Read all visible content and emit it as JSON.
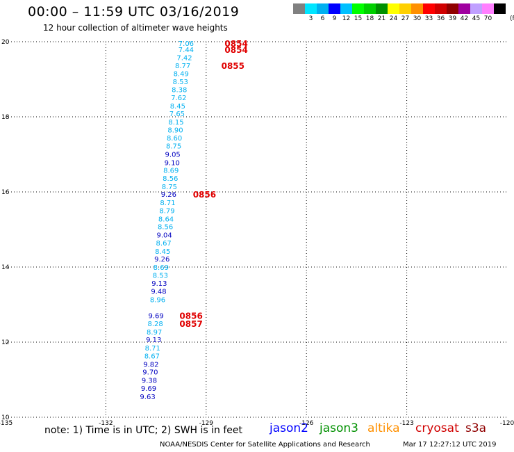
{
  "header": {
    "title": "00:00 – 11:59 UTC 03/16/2019",
    "subtitle": "12 hour collection of altimeter wave heights"
  },
  "color_legend": {
    "unit": "(ft)",
    "entries": [
      {
        "label": "",
        "color": "#808080"
      },
      {
        "label": "3",
        "color": "#00e5ff"
      },
      {
        "label": "6",
        "color": "#00b0f0"
      },
      {
        "label": "9",
        "color": "#0000ff"
      },
      {
        "label": "12",
        "color": "#00c0ff"
      },
      {
        "label": "15",
        "color": "#00ff00"
      },
      {
        "label": "18",
        "color": "#00d000"
      },
      {
        "label": "21",
        "color": "#009000"
      },
      {
        "label": "24",
        "color": "#ffff00"
      },
      {
        "label": "27",
        "color": "#ffd000"
      },
      {
        "label": "30",
        "color": "#ff9000"
      },
      {
        "label": "33",
        "color": "#ff0000"
      },
      {
        "label": "36",
        "color": "#d00000"
      },
      {
        "label": "39",
        "color": "#900000"
      },
      {
        "label": "42",
        "color": "#a000a0"
      },
      {
        "label": "45",
        "color": "#c0a0ff"
      },
      {
        "label": "70",
        "color": "#ff80ff"
      },
      {
        "label": "",
        "color": "#000000"
      }
    ]
  },
  "chart_data": {
    "type": "scatter",
    "xlim": [
      -135,
      -120
    ],
    "ylim": [
      10,
      20
    ],
    "x_ticks": [
      {
        "value": -135,
        "label": "-135"
      },
      {
        "value": -132,
        "label": "-132"
      },
      {
        "value": -129,
        "label": "-129"
      },
      {
        "value": -126,
        "label": "-126"
      },
      {
        "value": -123,
        "label": "-123"
      },
      {
        "value": -120,
        "label": "-120"
      }
    ],
    "y_ticks": [
      {
        "value": 10,
        "label": "10"
      },
      {
        "value": 12,
        "label": "12"
      },
      {
        "value": 14,
        "label": "14"
      },
      {
        "value": 16,
        "label": "16"
      },
      {
        "value": 18,
        "label": "18"
      },
      {
        "value": 20,
        "label": "20"
      }
    ],
    "grid": true,
    "points": [
      {
        "lon": -129.6,
        "lat": 19.96,
        "label": "7.06",
        "color": "#00b0f0"
      },
      {
        "lon": -129.6,
        "lat": 19.8,
        "label": "7.44",
        "color": "#00b0f0"
      },
      {
        "lon": -129.65,
        "lat": 19.58,
        "label": "7.42",
        "color": "#00b0f0"
      },
      {
        "lon": -129.7,
        "lat": 19.37,
        "label": "8.77",
        "color": "#00b0f0"
      },
      {
        "lon": -129.75,
        "lat": 19.16,
        "label": "8.49",
        "color": "#00b0f0"
      },
      {
        "lon": -129.77,
        "lat": 18.94,
        "label": "8.53",
        "color": "#00b0f0"
      },
      {
        "lon": -129.8,
        "lat": 18.73,
        "label": "8.38",
        "color": "#00b0f0"
      },
      {
        "lon": -129.82,
        "lat": 18.52,
        "label": "7.62",
        "color": "#00b0f0"
      },
      {
        "lon": -129.85,
        "lat": 18.3,
        "label": "8.45",
        "color": "#00b0f0"
      },
      {
        "lon": -129.87,
        "lat": 18.09,
        "label": "7.65",
        "color": "#00b0f0"
      },
      {
        "lon": -129.9,
        "lat": 17.87,
        "label": "8.15",
        "color": "#00b0f0"
      },
      {
        "lon": -129.92,
        "lat": 17.66,
        "label": "8.90",
        "color": "#00b0f0"
      },
      {
        "lon": -129.95,
        "lat": 17.44,
        "label": "8.60",
        "color": "#00b0f0"
      },
      {
        "lon": -129.97,
        "lat": 17.23,
        "label": "8.75",
        "color": "#00b0f0"
      },
      {
        "lon": -130.0,
        "lat": 17.01,
        "label": "9.05",
        "color": "#0000c0"
      },
      {
        "lon": -130.02,
        "lat": 16.79,
        "label": "9.10",
        "color": "#0000c0"
      },
      {
        "lon": -130.05,
        "lat": 16.58,
        "label": "8.69",
        "color": "#00b0f0"
      },
      {
        "lon": -130.07,
        "lat": 16.37,
        "label": "8.56",
        "color": "#00b0f0"
      },
      {
        "lon": -130.1,
        "lat": 16.15,
        "label": "8.75",
        "color": "#00b0f0"
      },
      {
        "lon": -130.12,
        "lat": 15.94,
        "label": "9.26",
        "color": "#0000c0"
      },
      {
        "lon": -130.15,
        "lat": 15.72,
        "label": "8.71",
        "color": "#00b0f0"
      },
      {
        "lon": -130.17,
        "lat": 15.51,
        "label": "8.79",
        "color": "#00b0f0"
      },
      {
        "lon": -130.2,
        "lat": 15.29,
        "label": "8.64",
        "color": "#00b0f0"
      },
      {
        "lon": -130.22,
        "lat": 15.08,
        "label": "8.56",
        "color": "#00b0f0"
      },
      {
        "lon": -130.25,
        "lat": 14.86,
        "label": "9.04",
        "color": "#0000c0"
      },
      {
        "lon": -130.27,
        "lat": 14.65,
        "label": "8.67",
        "color": "#00b0f0"
      },
      {
        "lon": -130.3,
        "lat": 14.43,
        "label": "8.45",
        "color": "#00b0f0"
      },
      {
        "lon": -130.32,
        "lat": 14.22,
        "label": "9.26",
        "color": "#0000c0"
      },
      {
        "lon": -130.35,
        "lat": 14.0,
        "label": "8.69",
        "color": "#00b0f0"
      },
      {
        "lon": -130.37,
        "lat": 13.79,
        "label": "8.53",
        "color": "#00b0f0"
      },
      {
        "lon": -130.4,
        "lat": 13.57,
        "label": "9.13",
        "color": "#0000c0"
      },
      {
        "lon": -130.42,
        "lat": 13.36,
        "label": "9.48",
        "color": "#0000c0"
      },
      {
        "lon": -130.45,
        "lat": 13.14,
        "label": "8.96",
        "color": "#00b0f0"
      },
      {
        "lon": -130.5,
        "lat": 12.71,
        "label": "9.69",
        "color": "#0000c0"
      },
      {
        "lon": -130.52,
        "lat": 12.5,
        "label": "8.28",
        "color": "#00b0f0"
      },
      {
        "lon": -130.55,
        "lat": 12.28,
        "label": "8.97",
        "color": "#00b0f0"
      },
      {
        "lon": -130.57,
        "lat": 12.07,
        "label": "9.13",
        "color": "#0000c0"
      },
      {
        "lon": -130.6,
        "lat": 11.85,
        "label": "8.71",
        "color": "#00b0f0"
      },
      {
        "lon": -130.62,
        "lat": 11.64,
        "label": "8.67",
        "color": "#00b0f0"
      },
      {
        "lon": -130.65,
        "lat": 11.42,
        "label": "9.82",
        "color": "#0000c0"
      },
      {
        "lon": -130.67,
        "lat": 11.21,
        "label": "9.70",
        "color": "#0000c0"
      },
      {
        "lon": -130.7,
        "lat": 10.99,
        "label": "9.38",
        "color": "#0000c0"
      },
      {
        "lon": -130.72,
        "lat": 10.78,
        "label": "9.69",
        "color": "#0000c0"
      },
      {
        "lon": -130.75,
        "lat": 10.56,
        "label": "9.63",
        "color": "#0000c0"
      }
    ],
    "time_labels": [
      {
        "lon": -128.1,
        "lat": 19.96,
        "label": "0854"
      },
      {
        "lon": -128.1,
        "lat": 19.8,
        "label": "0854"
      },
      {
        "lon": -128.2,
        "lat": 19.37,
        "label": "0855"
      },
      {
        "lon": -129.05,
        "lat": 15.94,
        "label": "0856"
      },
      {
        "lon": -129.45,
        "lat": 12.71,
        "label": "0856"
      },
      {
        "lon": -129.45,
        "lat": 12.5,
        "label": "0857"
      }
    ]
  },
  "notes": {
    "note": "note: 1) Time is in UTC; 2) SWH is in feet"
  },
  "missions": [
    {
      "name": "jason2",
      "color": "#0000ff"
    },
    {
      "name": "jason3",
      "color": "#009000"
    },
    {
      "name": "altika",
      "color": "#ff9000"
    },
    {
      "name": "cryosat",
      "color": "#d00000"
    },
    {
      "name": "s3a",
      "color": "#900000"
    }
  ],
  "footer": {
    "agency": "NOAA/NESDIS Center for Satellite Applications and Research",
    "timestamp": "Mar 17 12:27:12 UTC 2019"
  }
}
